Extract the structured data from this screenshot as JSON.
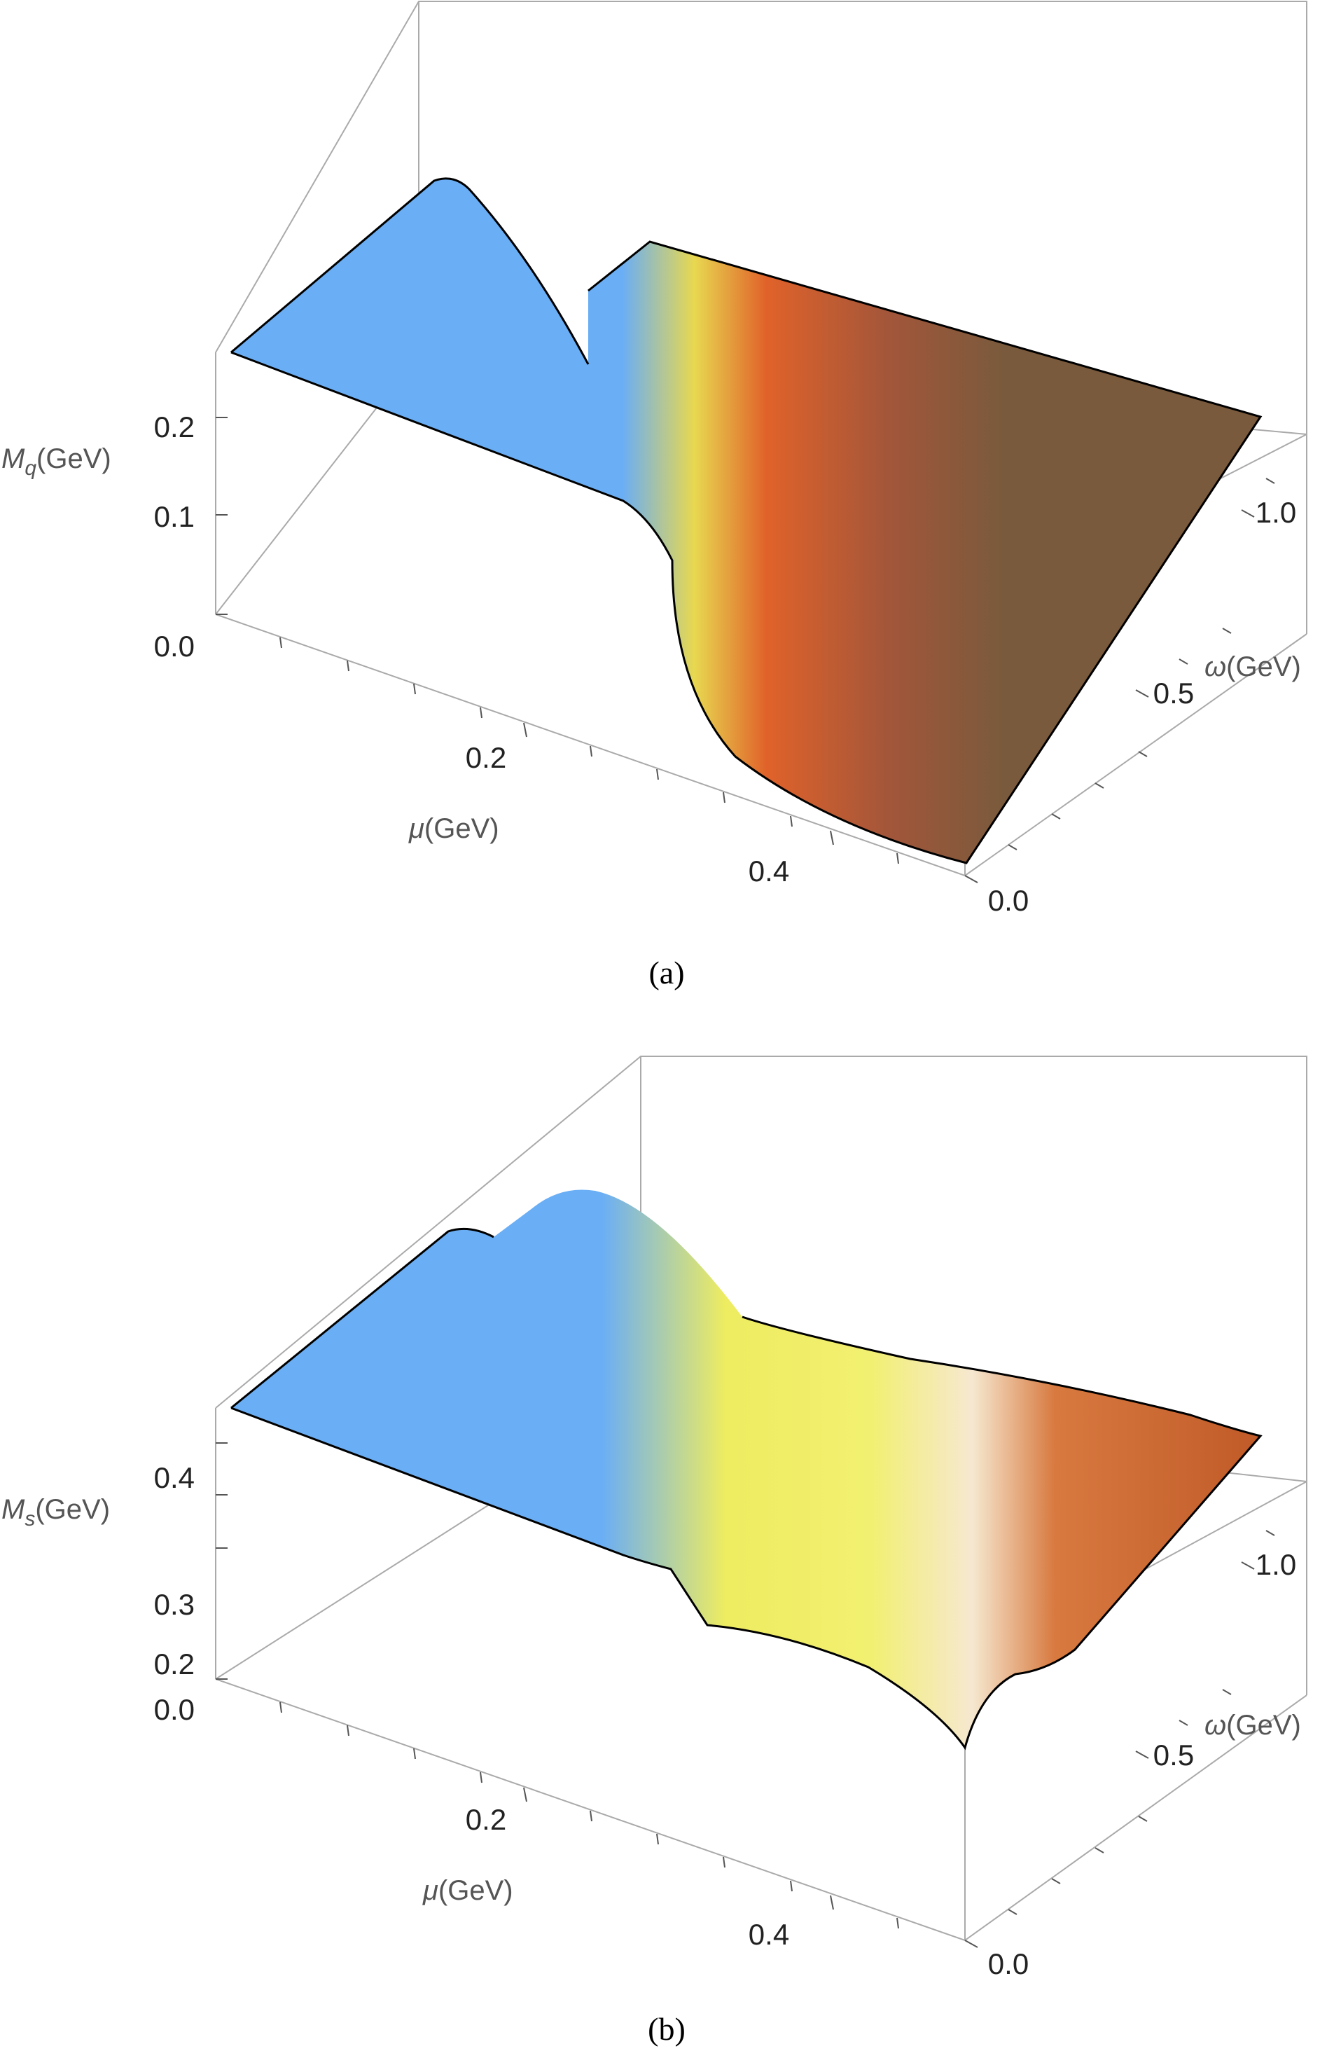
{
  "chart_data": [
    {
      "type": "surface3d",
      "caption": "(a)",
      "zlabel": {
        "symbol": "M",
        "sub": "q",
        "unit": "(GeV)"
      },
      "xlabel": {
        "symbol": "μ",
        "unit": "(GeV)"
      },
      "ylabel": {
        "symbol": "ω",
        "unit": "(GeV)"
      },
      "x_ticks": [
        "0.2",
        "0.4"
      ],
      "y_ticks": [
        "0.0",
        "0.5",
        "1.0"
      ],
      "z_ticks": [
        "0.0",
        "0.1",
        "0.2"
      ],
      "xlim": [
        0.0,
        0.5
      ],
      "ylim": [
        0.0,
        1.2
      ],
      "zlim": [
        0.0,
        0.27
      ],
      "description_colors": {
        "low": "#6aaef5",
        "mid": "#f0d040",
        "high": "#e06a2a",
        "flat": "#7a5a3a"
      }
    },
    {
      "type": "surface3d",
      "caption": "(b)",
      "zlabel": {
        "symbol": "M",
        "sub": "s",
        "unit": "(GeV)"
      },
      "xlabel": {
        "symbol": "μ",
        "unit": "(GeV)"
      },
      "ylabel": {
        "symbol": "ω",
        "unit": "(GeV)"
      },
      "x_ticks": [
        "0.2",
        "0.4"
      ],
      "y_ticks": [
        "0.0",
        "0.5",
        "1.0"
      ],
      "z_ticks": [
        "0.0",
        "0.2",
        "0.3",
        "0.4"
      ],
      "xlim": [
        0.0,
        0.5
      ],
      "ylim": [
        0.0,
        1.2
      ],
      "zlim": [
        0.0,
        0.48
      ],
      "description_colors": {
        "low": "#6aaef5",
        "mid": "#f2ee60",
        "high": "#c8602a"
      }
    }
  ]
}
